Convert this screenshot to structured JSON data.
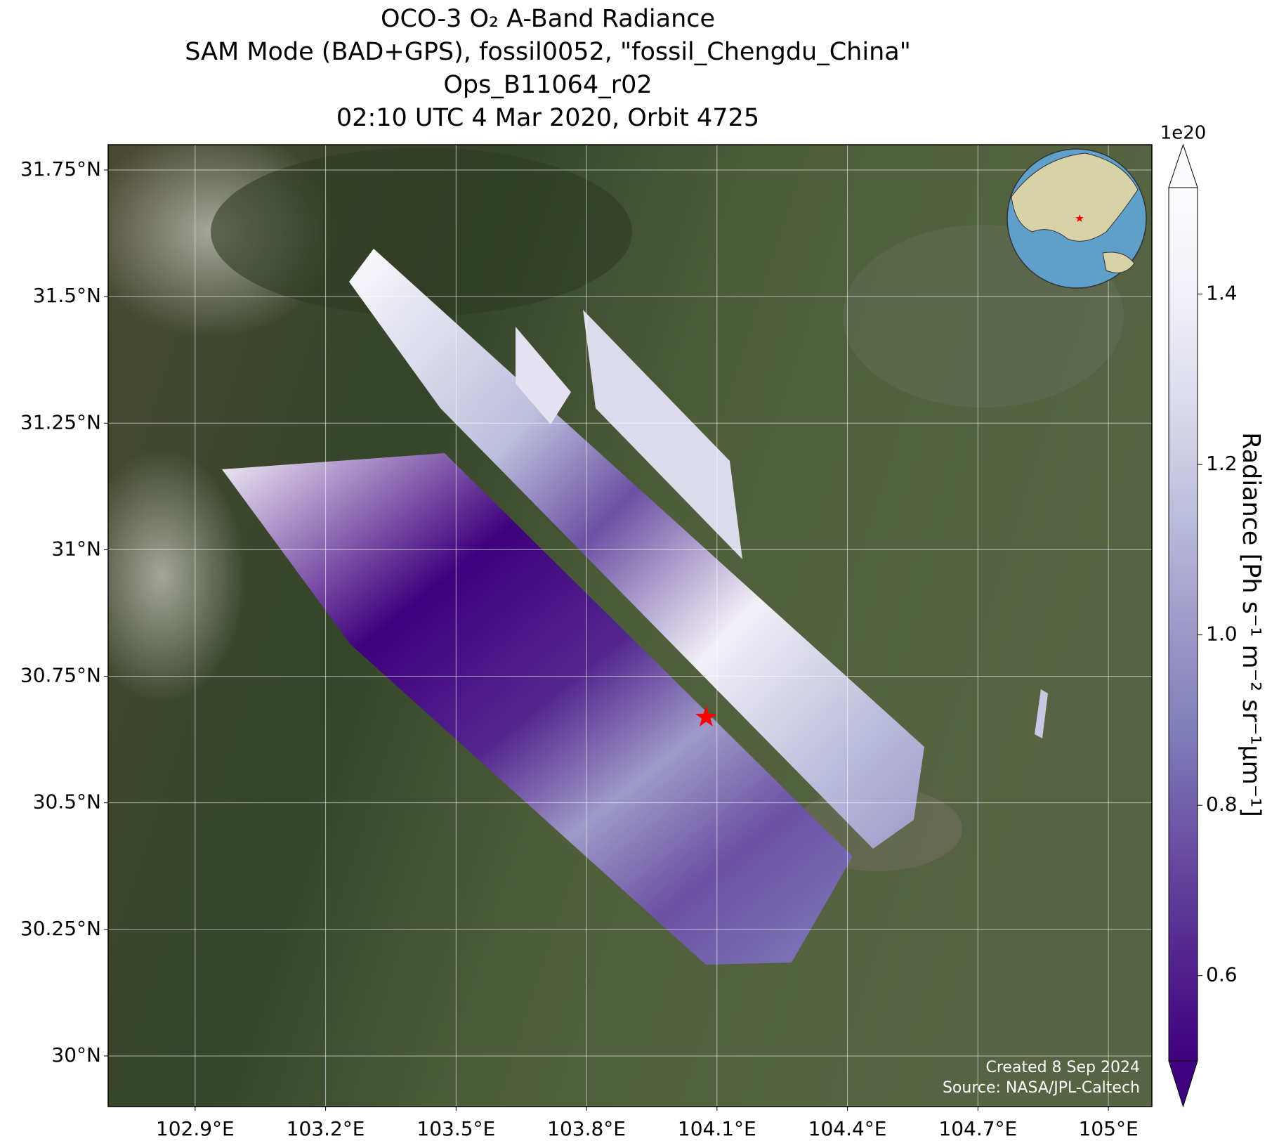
{
  "chart_data": {
    "type": "map",
    "title": [
      "OCO-3 O₂ A-Band Radiance",
      "SAM Mode (BAD+GPS), fossil0052, \"fossil_Chengdu_China\"",
      "Ops_B11064_r02",
      "02:10 UTC 4 Mar 2020, Orbit 4725"
    ],
    "xlim": [
      102.7,
      105.1
    ],
    "ylim": [
      29.9,
      31.8
    ],
    "xticks": [
      {
        "value": 102.9,
        "label": "102.9°E"
      },
      {
        "value": 103.2,
        "label": "103.2°E"
      },
      {
        "value": 103.5,
        "label": "103.5°E"
      },
      {
        "value": 103.8,
        "label": "103.8°E"
      },
      {
        "value": 104.1,
        "label": "104.1°E"
      },
      {
        "value": 104.4,
        "label": "104.4°E"
      },
      {
        "value": 104.7,
        "label": "104.7°E"
      },
      {
        "value": 105.0,
        "label": "105°E"
      }
    ],
    "yticks": [
      {
        "value": 30.0,
        "label": "30°N"
      },
      {
        "value": 30.25,
        "label": "30.25°N"
      },
      {
        "value": 30.5,
        "label": "30.5°N"
      },
      {
        "value": 30.75,
        "label": "30.75°N"
      },
      {
        "value": 31.0,
        "label": "31°N"
      },
      {
        "value": 31.25,
        "label": "31.25°N"
      },
      {
        "value": 31.5,
        "label": "31.5°N"
      },
      {
        "value": 31.75,
        "label": "31.75°N"
      }
    ],
    "grid": true,
    "marker": {
      "lon": 104.075,
      "lat": 30.669,
      "color": "#ff0000"
    },
    "colorbar": {
      "label": "Radiance [Ph s⁻¹ m⁻² sr⁻¹μm⁻¹]",
      "offset_label": "1e20",
      "lim": [
        0.5,
        1.525
      ],
      "ticks": [
        0.6,
        0.8,
        {
          "value": 1.0,
          "label": "1.0"
        },
        1.2,
        1.4
      ],
      "colors": [
        "#3f007d",
        "#54278f",
        "#6a51a3",
        "#807dba",
        "#9e9ac8",
        "#bcbddc",
        "#dadaeb",
        "#f2f0f7",
        "#fcfbfd"
      ]
    },
    "credits": [
      "Created 8 Sep 2024",
      "Source: NASA/JPL-Caltech"
    ]
  }
}
